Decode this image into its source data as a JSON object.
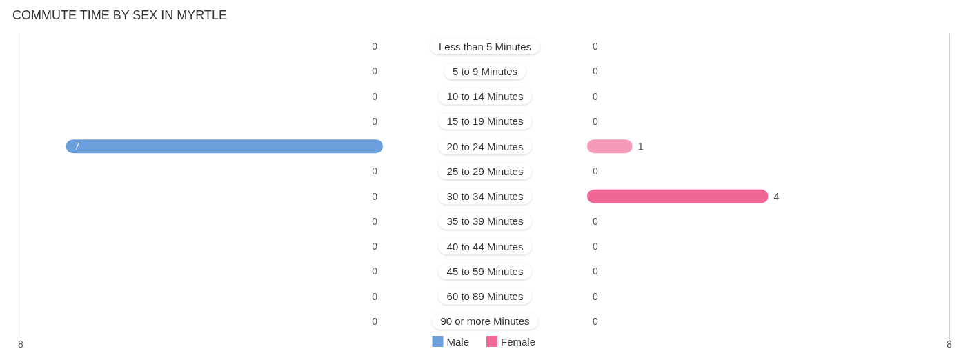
{
  "chart_data": [
    {
      "type": "bar",
      "orientation": "horizontal",
      "title": "COMMUTE TIME BY SEX IN MYRTLE",
      "categories": [
        "Less than 5 Minutes",
        "5 to 9 Minutes",
        "10 to 14 Minutes",
        "15 to 19 Minutes",
        "20 to 24 Minutes",
        "25 to 29 Minutes",
        "30 to 34 Minutes",
        "35 to 39 Minutes",
        "40 to 44 Minutes",
        "45 to 59 Minutes",
        "60 to 89 Minutes",
        "90 or more Minutes"
      ],
      "series": [
        {
          "name": "Male",
          "color": "#6a9fdc",
          "colors": [
            "#a9c8ec",
            "#a9c8ec",
            "#a9c8ec",
            "#a9c8ec",
            "#6a9fdc",
            "#a9c8ec",
            "#a9c8ec",
            "#a9c8ec",
            "#a9c8ec",
            "#a9c8ec",
            "#a9c8ec",
            "#a9c8ec"
          ],
          "values": [
            0,
            0,
            0,
            0,
            7,
            0,
            0,
            0,
            0,
            0,
            0,
            0
          ]
        }
      ],
      "xlim": [
        8,
        0
      ],
      "xticks": [
        8
      ],
      "legend": "bottom",
      "data_labels": true
    },
    {
      "type": "bar",
      "orientation": "horizontal",
      "categories": [
        null,
        null,
        null,
        null,
        null,
        null,
        null,
        null,
        null,
        null,
        null,
        null
      ],
      "series": [
        {
          "name": "Female",
          "color": "#f06894",
          "colors": [
            "#f7a8c1",
            "#f7a8c1",
            "#f7a8c1",
            "#f7a8c1",
            "#f59ab8",
            "#f7a8c1",
            "#f06794",
            "#f7a8c1",
            "#f7a8c1",
            "#f7a8c1",
            "#f7a8c1",
            "#f7a8c1"
          ],
          "values": [
            0,
            0,
            0,
            0,
            1,
            0,
            4,
            0,
            0,
            0,
            0,
            0
          ]
        }
      ],
      "xlim": [
        0,
        8
      ],
      "xticks": [
        8
      ],
      "legend": "bottom",
      "data_labels": true,
      "tick_labels": "x"
    }
  ]
}
